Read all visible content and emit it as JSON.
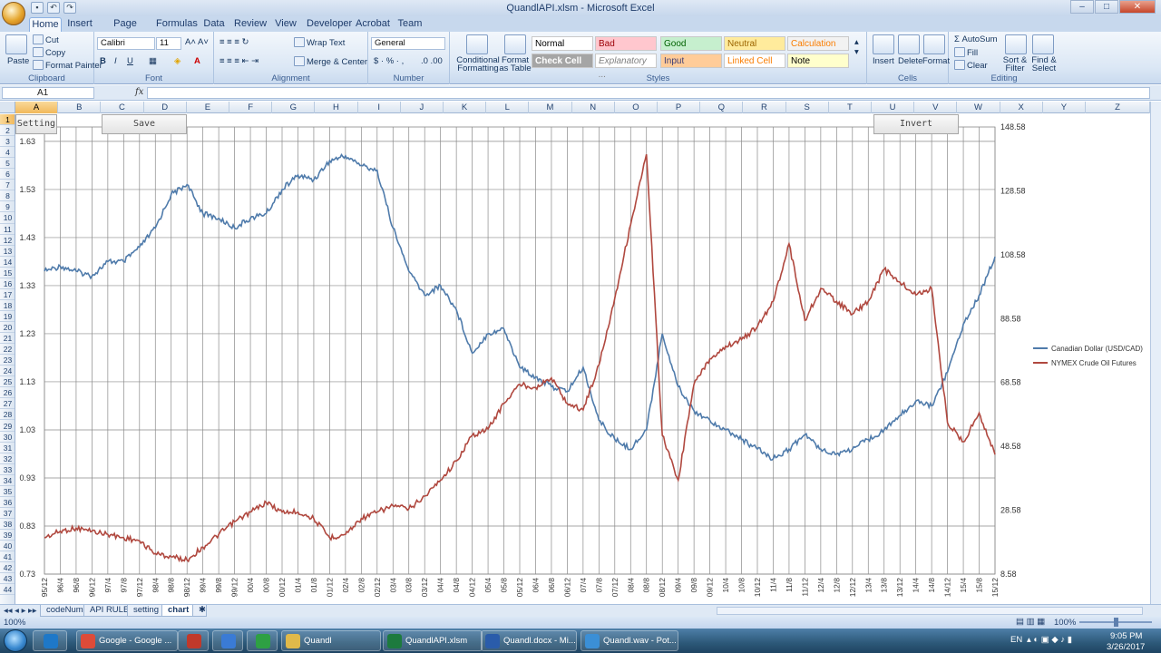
{
  "window": {
    "title": "QuandlAPI.xlsm - Microsoft Excel"
  },
  "ribbon_tabs": [
    "Home",
    "Insert",
    "Page Layout",
    "Formulas",
    "Data",
    "Review",
    "View",
    "Developer",
    "Acrobat",
    "Team"
  ],
  "clipboard": {
    "paste": "Paste",
    "cut": "Cut",
    "copy": "Copy",
    "format_painter": "Format Painter",
    "label": "Clipboard"
  },
  "font": {
    "name": "Calibri",
    "size": "11",
    "label": "Font"
  },
  "alignment": {
    "wrap": "Wrap Text",
    "merge": "Merge & Center",
    "label": "Alignment"
  },
  "number": {
    "format": "General",
    "label": "Number"
  },
  "styles": {
    "conditional": "Conditional Formatting",
    "format_table": "Format as Table",
    "cells": [
      {
        "label": "Normal",
        "bg": "#ffffff",
        "fg": "#000000"
      },
      {
        "label": "Bad",
        "bg": "#ffc7ce",
        "fg": "#9c0006"
      },
      {
        "label": "Good",
        "bg": "#c6efce",
        "fg": "#006100"
      },
      {
        "label": "Neutral",
        "bg": "#ffeb9c",
        "fg": "#9c6500"
      },
      {
        "label": "Calculation",
        "bg": "#f2f2f2",
        "fg": "#fa7d00"
      },
      {
        "label": "Check Cell",
        "bg": "#a5a5a5",
        "fg": "#ffffff"
      },
      {
        "label": "Explanatory ...",
        "bg": "#ffffff",
        "fg": "#7f7f7f"
      },
      {
        "label": "Input",
        "bg": "#ffcc99",
        "fg": "#3f3f76"
      },
      {
        "label": "Linked Cell",
        "bg": "#ffffff",
        "fg": "#fa7d00"
      },
      {
        "label": "Note",
        "bg": "#ffffcc",
        "fg": "#000000"
      }
    ],
    "label": "Styles"
  },
  "cells_group": {
    "insert": "Insert",
    "delete": "Delete",
    "format": "Format",
    "label": "Cells"
  },
  "editing": {
    "autosum": "AutoSum",
    "fill": "Fill",
    "clear": "Clear",
    "sort": "Sort & Filter",
    "find": "Find & Select",
    "label": "Editing"
  },
  "formula_bar": {
    "name_box": "A1",
    "fx": "fx",
    "value": ""
  },
  "columns": [
    "A",
    "B",
    "C",
    "D",
    "E",
    "F",
    "G",
    "H",
    "I",
    "J",
    "K",
    "L",
    "M",
    "N",
    "O",
    "P",
    "Q",
    "R",
    "S",
    "T",
    "U",
    "V",
    "W",
    "X",
    "Y",
    "Z"
  ],
  "buttons": {
    "setting": "Setting",
    "save": "Save",
    "invert": "Invert"
  },
  "sheets": [
    "codeNum",
    "API RULE",
    "setting",
    "chart"
  ],
  "active_sheet": "chart",
  "status": {
    "zoom": "100%",
    "zoom_right": "100%"
  },
  "taskbar": {
    "items": [
      {
        "label": "",
        "color": "#1e78c8"
      },
      {
        "label": "Google - Google ...",
        "color": "#dd4b39"
      },
      {
        "label": "",
        "color": "#c0392b"
      },
      {
        "label": "",
        "color": "#3a7bd5"
      },
      {
        "label": "",
        "color": "#2ea043"
      },
      {
        "label": "Quandl",
        "color": "#e0b94a"
      },
      {
        "label": "QuandlAPI.xlsm",
        "color": "#1d7a3e"
      },
      {
        "label": "Quandl.docx - Mi...",
        "color": "#2a5caa"
      },
      {
        "label": "Quandl.wav - Pot...",
        "color": "#3b8fd6"
      }
    ],
    "lang": "EN",
    "time": "9:05 PM",
    "date": "3/26/2017"
  },
  "chart_data": {
    "type": "line",
    "x": [
      "95/12",
      "96/4",
      "96/8",
      "96/12",
      "97/4",
      "97/8",
      "97/12",
      "98/4",
      "98/8",
      "98/12",
      "99/4",
      "99/8",
      "99/12",
      "00/4",
      "00/8",
      "00/12",
      "01/4",
      "01/8",
      "01/12",
      "02/4",
      "02/8",
      "02/12",
      "03/4",
      "03/8",
      "03/12",
      "04/4",
      "04/8",
      "04/12",
      "05/4",
      "05/8",
      "05/12",
      "06/4",
      "06/8",
      "06/12",
      "07/4",
      "07/8",
      "07/12",
      "08/4",
      "08/8",
      "08/12",
      "09/4",
      "09/8",
      "09/12",
      "10/4",
      "10/8",
      "10/12",
      "11/4",
      "11/8",
      "11/12",
      "12/4",
      "12/8",
      "12/12",
      "13/4",
      "13/8",
      "13/12",
      "14/4",
      "14/8",
      "14/12",
      "15/4",
      "15/8",
      "15/12"
    ],
    "series": [
      {
        "name": "Canadian Dollar (USD/CAD)",
        "axis": "left",
        "color": "#4f7bab",
        "values": [
          1.36,
          1.37,
          1.36,
          1.35,
          1.38,
          1.38,
          1.41,
          1.45,
          1.52,
          1.54,
          1.48,
          1.47,
          1.45,
          1.47,
          1.48,
          1.53,
          1.56,
          1.55,
          1.59,
          1.6,
          1.58,
          1.57,
          1.45,
          1.36,
          1.31,
          1.33,
          1.28,
          1.19,
          1.23,
          1.24,
          1.16,
          1.14,
          1.12,
          1.11,
          1.16,
          1.05,
          1.01,
          0.99,
          1.03,
          1.23,
          1.12,
          1.07,
          1.05,
          1.03,
          1.01,
          0.99,
          0.97,
          0.99,
          1.02,
          0.99,
          0.98,
          0.99,
          1.01,
          1.03,
          1.06,
          1.09,
          1.08,
          1.15,
          1.25,
          1.31,
          1.39
        ]
      },
      {
        "name": "NYMEX Crude Oil Futures",
        "axis": "right",
        "color": "#b0483f",
        "values": [
          20,
          22,
          23,
          22,
          21,
          20,
          19,
          15,
          14,
          13,
          17,
          21,
          25,
          28,
          31,
          28,
          28,
          26,
          20,
          21,
          26,
          28,
          30,
          29,
          33,
          38,
          44,
          52,
          54,
          62,
          68,
          67,
          70,
          62,
          60,
          74,
          95,
          118,
          140,
          52,
          38,
          68,
          76,
          80,
          82,
          86,
          94,
          112,
          88,
          98,
          94,
          90,
          94,
          104,
          100,
          96,
          98,
          56,
          50,
          59,
          46
        ]
      }
    ],
    "y_left": {
      "ticks": [
        "0.73",
        "0.83",
        "0.93",
        "1.03",
        "1.13",
        "1.23",
        "1.33",
        "1.43",
        "1.53",
        "1.63"
      ],
      "range": [
        0.73,
        1.66
      ]
    },
    "y_right": {
      "ticks": [
        "8.58",
        "28.58",
        "48.58",
        "68.58",
        "88.58",
        "108.58",
        "128.58",
        "148.58"
      ],
      "range": [
        8.58,
        148.58
      ]
    },
    "legend_position": "right",
    "grid": true
  }
}
